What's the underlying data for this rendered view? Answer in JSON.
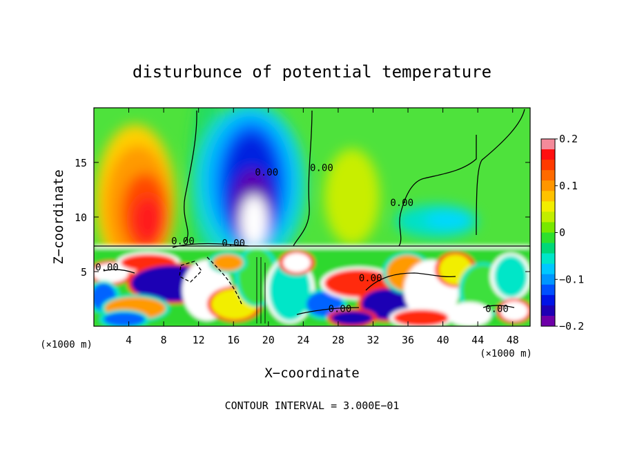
{
  "chart_data": {
    "type": "heatmap",
    "title": "disturbunce of potential temperature",
    "xlabel": "X−coordinate",
    "ylabel": "Z−coordinate",
    "x_unit": "(×1000 m)",
    "x_unit_right": "(×1000 m)",
    "footer": "CONTOUR INTERVAL = 3.000E−01",
    "xlim": [
      0,
      50
    ],
    "ylim": [
      0,
      20
    ],
    "x_ticks": [
      4,
      8,
      12,
      16,
      20,
      24,
      28,
      32,
      36,
      40,
      44,
      48
    ],
    "x_tick_labels": [
      "4",
      "8",
      "12",
      "16",
      "20",
      "24",
      "28",
      "32",
      "36",
      "40",
      "44",
      "48"
    ],
    "y_ticks": [
      5,
      10,
      15
    ],
    "y_tick_labels": [
      "5",
      "10",
      "15"
    ],
    "colorbar": {
      "range": [
        -0.2,
        0.2
      ],
      "tick_values": [
        0.2,
        0.1,
        0,
        -0.1,
        -0.2
      ],
      "tick_labels": [
        "0.2",
        "0.1",
        "0",
        "−0.1",
        "−0.2"
      ],
      "colors": [
        "#f48a9a",
        "#ff1010",
        "#ff3a00",
        "#ff6a00",
        "#ff9600",
        "#ffc200",
        "#f2ee00",
        "#c2ee00",
        "#78e800",
        "#2ee02e",
        "#00d878",
        "#00e6c8",
        "#00c8ff",
        "#0096ff",
        "#0050ff",
        "#0014e6",
        "#1e00b4",
        "#6e00a8"
      ]
    },
    "contour_labels": [
      {
        "text": "0.00",
        "x": 19.8,
        "z": 13.8
      },
      {
        "text": "0.00",
        "x": 26.1,
        "z": 14.2
      },
      {
        "text": "0.00",
        "x": 35.3,
        "z": 11.0
      },
      {
        "text": "0.00",
        "x": 10.2,
        "z": 7.5
      },
      {
        "text": "0.00",
        "x": 16.0,
        "z": 7.3
      },
      {
        "text": "0.00",
        "x": 1.5,
        "z": 5.1
      },
      {
        "text": "0.00",
        "x": 31.7,
        "z": 4.1
      },
      {
        "text": "0.00",
        "x": 28.2,
        "z": 1.3
      },
      {
        "text": "0.00",
        "x": 46.2,
        "z": 1.3
      }
    ],
    "contour_interval": 0.3,
    "grid": false
  }
}
